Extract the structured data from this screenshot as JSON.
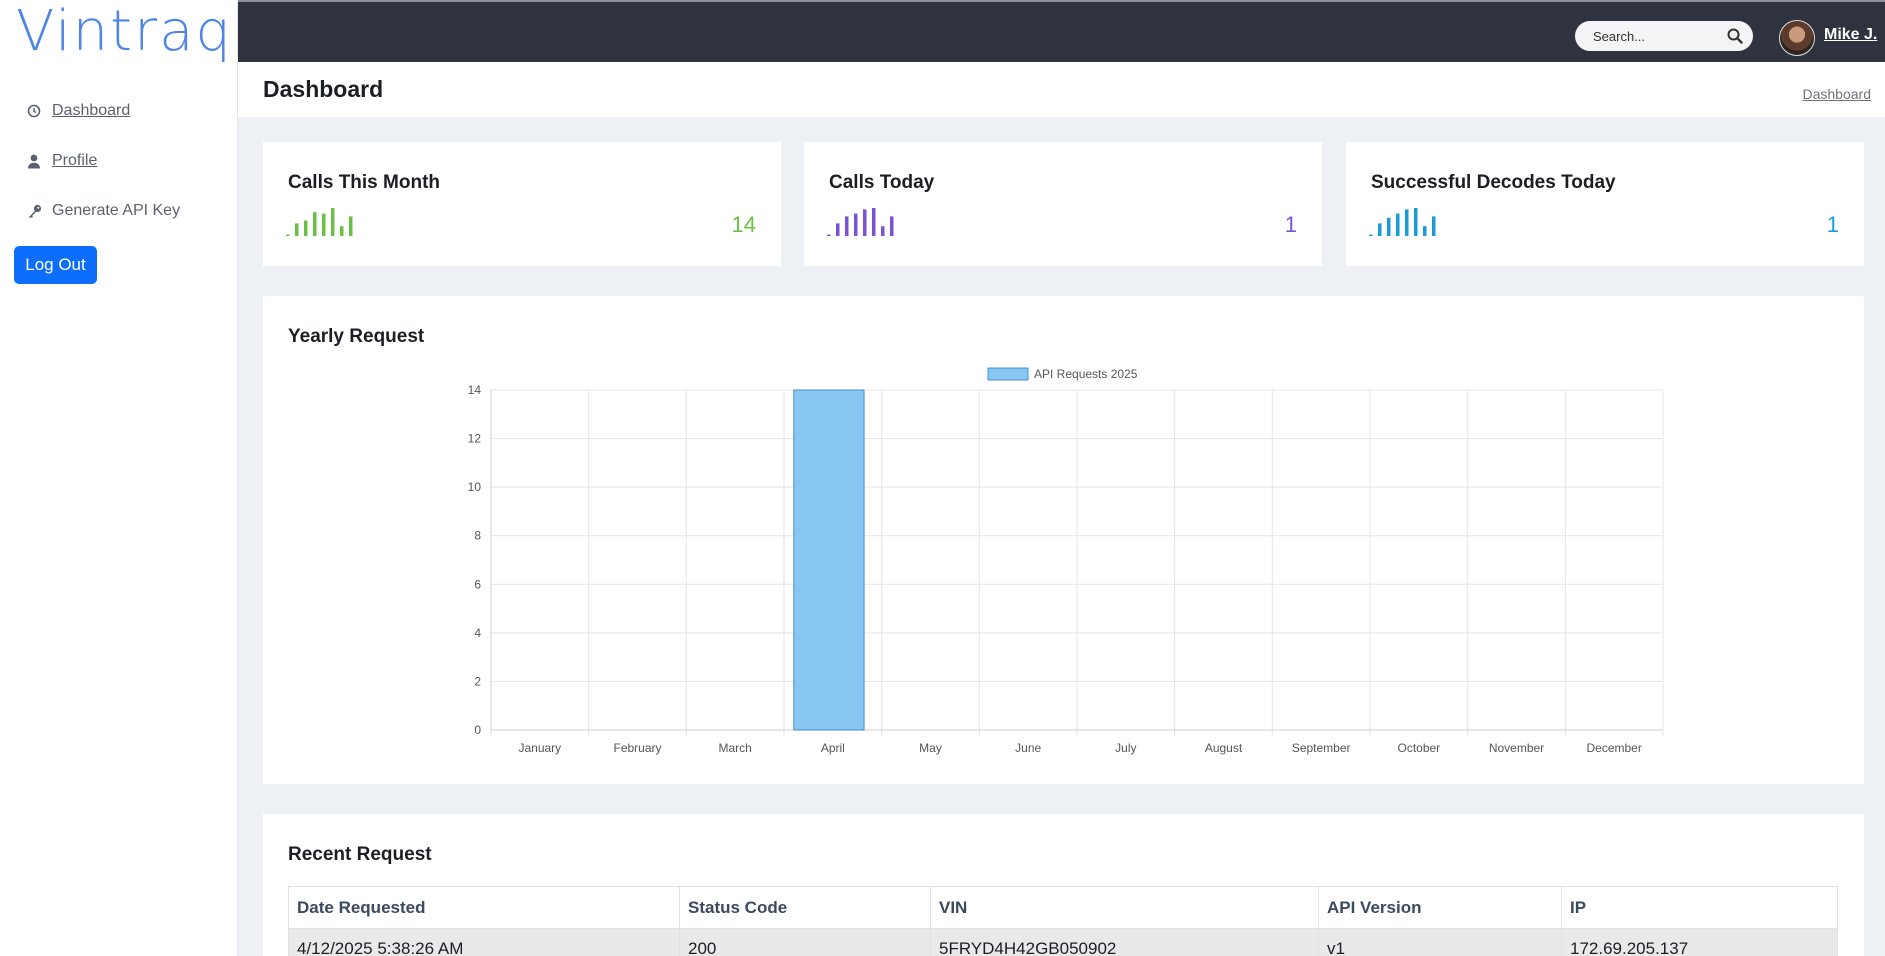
{
  "app": {
    "logo": "Vintraq"
  },
  "sidebar": {
    "items": [
      {
        "label": "Dashboard",
        "icon": "clock-icon"
      },
      {
        "label": "Profile",
        "icon": "user-icon"
      },
      {
        "label": "Generate API Key",
        "icon": "key-icon"
      }
    ],
    "logout_label": "Log Out"
  },
  "topbar": {
    "search_placeholder": "Search...",
    "username": "Mike J."
  },
  "header": {
    "title": "Dashboard",
    "breadcrumb": "Dashboard"
  },
  "stats": [
    {
      "title": "Calls This Month",
      "value": "14",
      "color": "#6cbf45"
    },
    {
      "title": "Calls Today",
      "value": "1",
      "color": "#7a52d6"
    },
    {
      "title": "Successful Decodes Today",
      "value": "1",
      "color": "#1a9bd7"
    }
  ],
  "chart": {
    "section_title": "Yearly Request"
  },
  "chart_data": {
    "type": "bar",
    "categories": [
      "January",
      "February",
      "March",
      "April",
      "May",
      "June",
      "July",
      "August",
      "September",
      "October",
      "November",
      "December"
    ],
    "series": [
      {
        "name": "API Requests 2025",
        "values": [
          0,
          0,
          0,
          14,
          0,
          0,
          0,
          0,
          0,
          0,
          0,
          0
        ],
        "color": "#87c7f2"
      }
    ],
    "ylim": [
      0,
      14
    ],
    "yticks": [
      0,
      2,
      4,
      6,
      8,
      10,
      12,
      14
    ],
    "grid": true,
    "legend": "top-center"
  },
  "recent": {
    "section_title": "Recent Request",
    "columns": [
      "Date Requested",
      "Status Code",
      "VIN",
      "API Version",
      "IP"
    ],
    "rows": [
      [
        "4/12/2025 5:38:26 AM",
        "200",
        "5FRYD4H42GB050902",
        "v1",
        "172.69.205.137"
      ]
    ]
  }
}
